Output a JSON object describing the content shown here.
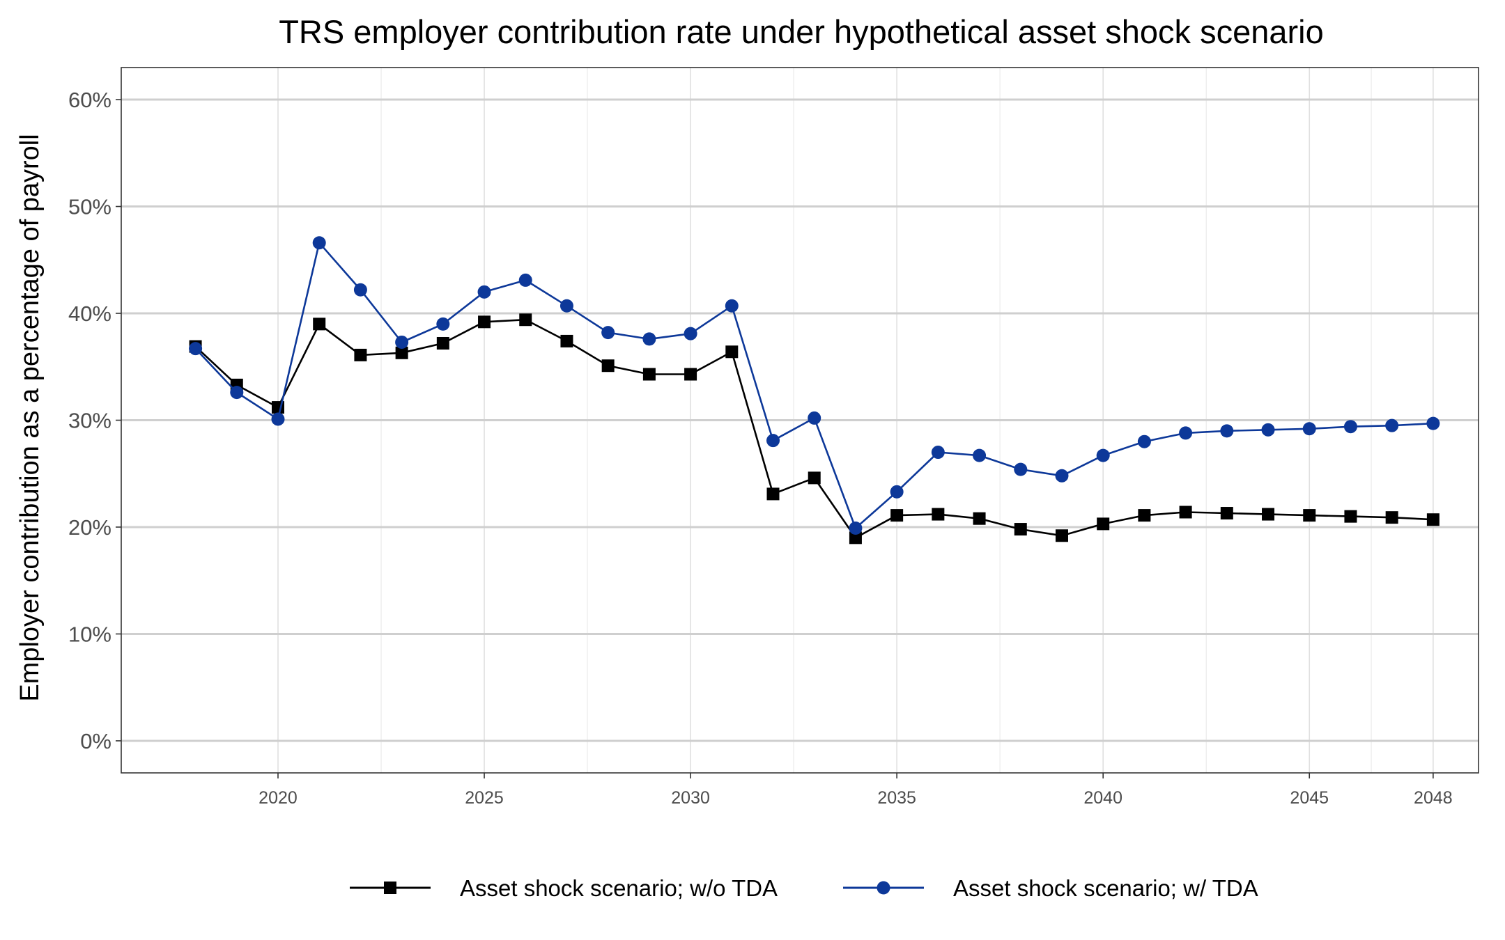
{
  "chart_data": {
    "type": "line",
    "title": "TRS employer contribution rate under hypothetical asset shock scenario",
    "ylabel": "Employer contribution as a percentage of payroll",
    "xlabel": "",
    "x_ticks": [
      "2020",
      "2025",
      "2030",
      "2035",
      "2040",
      "2045",
      "2048"
    ],
    "y_ticks": [
      "0%",
      "10%",
      "20%",
      "30%",
      "40%",
      "50%",
      "60%"
    ],
    "xlim": [
      2016.2,
      2049.1
    ],
    "ylim": [
      -3,
      63
    ],
    "grid": true,
    "legend_position": "bottom",
    "x": [
      2018,
      2019,
      2020,
      2021,
      2022,
      2023,
      2024,
      2025,
      2026,
      2027,
      2028,
      2029,
      2030,
      2031,
      2032,
      2033,
      2034,
      2035,
      2036,
      2037,
      2038,
      2039,
      2040,
      2041,
      2042,
      2043,
      2044,
      2045,
      2046,
      2047,
      2048
    ],
    "series": [
      {
        "name": "Asset shock scenario; w/o TDA",
        "color": "#000000",
        "marker": "square",
        "values": [
          36.9,
          33.3,
          31.2,
          39.0,
          36.1,
          36.3,
          37.2,
          39.2,
          39.4,
          37.4,
          35.1,
          34.3,
          34.3,
          36.4,
          23.1,
          24.6,
          19.0,
          21.1,
          21.2,
          20.8,
          19.8,
          19.2,
          20.3,
          21.1,
          21.4,
          21.3,
          21.2,
          21.1,
          21.0,
          20.9,
          20.7
        ]
      },
      {
        "name": "Asset shock scenario; w/ TDA",
        "color": "#0d3899",
        "marker": "circle",
        "values": [
          36.7,
          32.6,
          30.1,
          46.6,
          42.2,
          37.3,
          39.0,
          42.0,
          43.1,
          40.7,
          38.2,
          37.6,
          38.1,
          40.7,
          28.1,
          30.2,
          19.9,
          23.3,
          27.0,
          26.7,
          25.4,
          24.8,
          26.7,
          28.0,
          28.8,
          29.0,
          29.1,
          29.2,
          29.4,
          29.5,
          29.7
        ]
      }
    ]
  }
}
